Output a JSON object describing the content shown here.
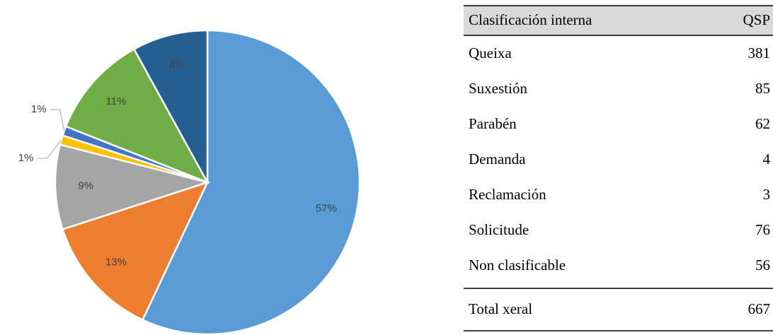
{
  "chart_data": {
    "type": "pie",
    "values": [
      57,
      13,
      9,
      1,
      1,
      11,
      8
    ],
    "value_labels": [
      "57%",
      "13%",
      "9%",
      "1%",
      "1%",
      "11%",
      "8%"
    ],
    "colors": [
      "#5b9bd5",
      "#ed7d31",
      "#a5a5a5",
      "#ffc000",
      "#4472c4",
      "#70ad47",
      "#255e91"
    ]
  },
  "table": {
    "header": [
      "Clasificación interna",
      "QSP"
    ],
    "rows": [
      [
        "Queixa",
        381
      ],
      [
        "Suxestión",
        85
      ],
      [
        "Parabén",
        62
      ],
      [
        "Demanda",
        4
      ],
      [
        "Reclamación",
        3
      ],
      [
        "Solicitude",
        76
      ],
      [
        "Non clasificable",
        56
      ]
    ],
    "total": [
      "Total xeral",
      667
    ]
  }
}
